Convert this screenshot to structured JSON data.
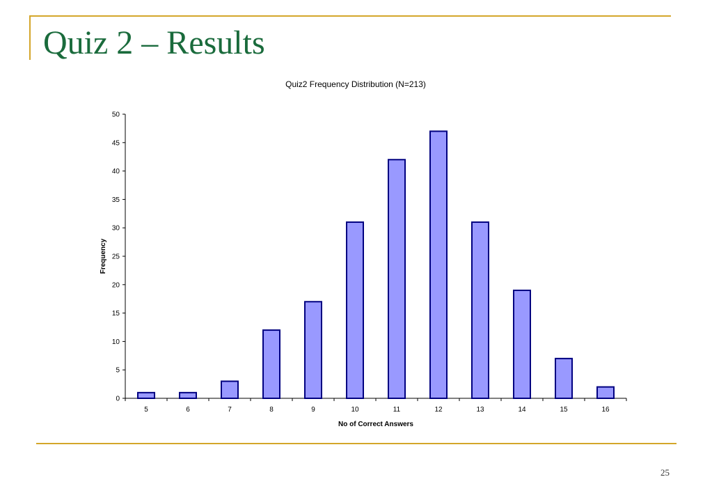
{
  "slide": {
    "title": "Quiz 2 – Results",
    "page_number": "25"
  },
  "colors": {
    "accent_rule": "#d4a62a",
    "title_text": "#1a6b3c",
    "bar_fill": "#9999ff",
    "bar_stroke": "#000080"
  },
  "chart_data": {
    "type": "bar",
    "title": "Quiz2  Frequency Distribution (N=213)",
    "xlabel": "No of Correct Answers",
    "ylabel": "Frequency",
    "categories": [
      "5",
      "6",
      "7",
      "8",
      "9",
      "10",
      "11",
      "12",
      "13",
      "14",
      "15",
      "16"
    ],
    "values": [
      1,
      1,
      3,
      12,
      17,
      31,
      42,
      47,
      31,
      19,
      7,
      2
    ],
    "ylim": [
      0,
      50
    ],
    "yticks": [
      "0",
      "5",
      "10",
      "15",
      "20",
      "25",
      "30",
      "35",
      "40",
      "45",
      "50"
    ],
    "grid": false,
    "legend": "none"
  }
}
